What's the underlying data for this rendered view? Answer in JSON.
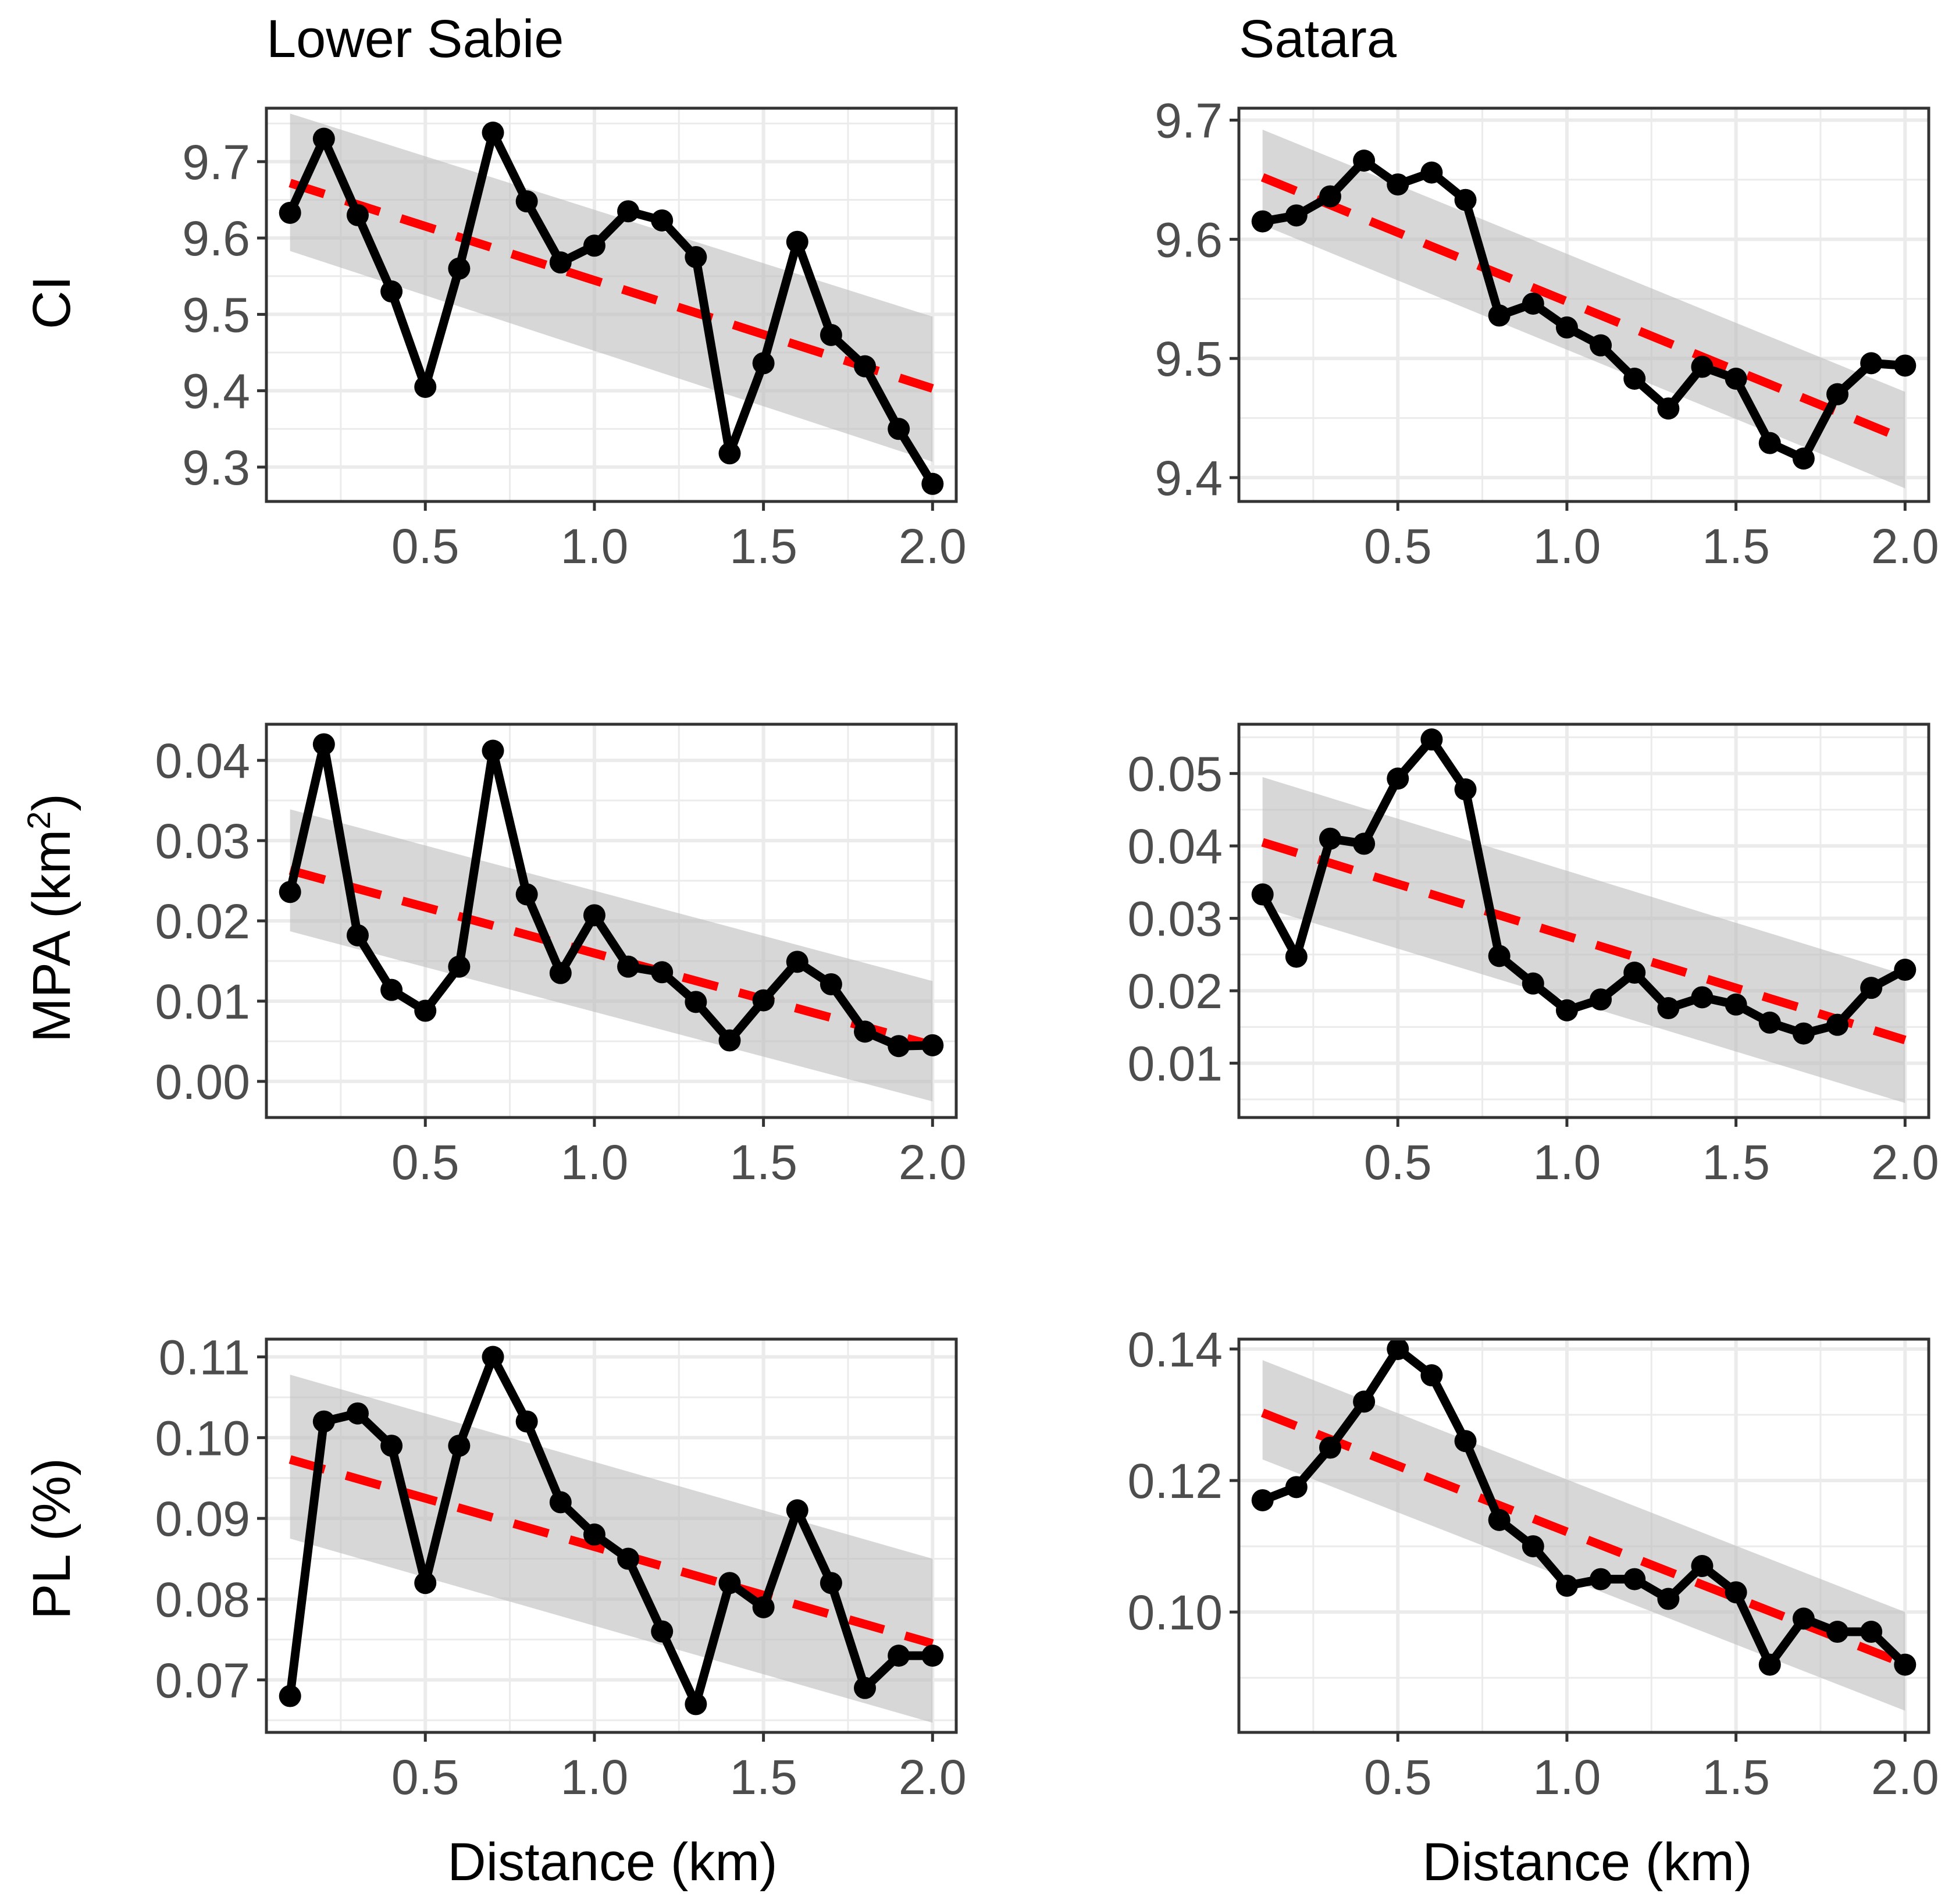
{
  "figure": {
    "columns": [
      "Lower Sabie",
      "Satara"
    ],
    "rows": [
      {
        "id": "CI",
        "label": "CI"
      },
      {
        "id": "MPA",
        "label": "MPA (km",
        "label_sup": "2",
        "label_end": ")"
      },
      {
        "id": "PL",
        "label": "PL (%)"
      }
    ],
    "xlabel": "Distance (km)",
    "x_ticks": [
      "0.5",
      "1.0",
      "1.5",
      "2.0"
    ],
    "x_tick_values": [
      0.5,
      1.0,
      1.5,
      2.0
    ],
    "colors": {
      "line": "#000000",
      "trend": "#ff0000",
      "ribbon": "#bdbdbd",
      "grid": "#ebebeb",
      "border": "#333333"
    }
  },
  "chart_data": [
    {
      "type": "line",
      "column": "Lower Sabie",
      "row": "CI",
      "ylabel": "CI",
      "xlim": [
        0.03,
        2.07
      ],
      "ylim": [
        9.255,
        9.77
      ],
      "y_ticks": [
        9.3,
        9.4,
        9.5,
        9.6,
        9.7
      ],
      "y_tick_labels": [
        "9.3",
        "9.4",
        "9.5",
        "9.6",
        "9.7"
      ],
      "x": [
        0.1,
        0.2,
        0.3,
        0.4,
        0.5,
        0.6,
        0.7,
        0.8,
        0.9,
        1.0,
        1.1,
        1.2,
        1.3,
        1.4,
        1.5,
        1.6,
        1.7,
        1.8,
        1.9,
        2.0
      ],
      "values": [
        9.633,
        9.73,
        9.63,
        9.53,
        9.405,
        9.56,
        9.738,
        9.648,
        9.568,
        9.59,
        9.635,
        9.623,
        9.575,
        9.318,
        9.436,
        9.595,
        9.473,
        9.432,
        9.35,
        9.278
      ],
      "trend": {
        "x": [
          0.1,
          2.0
        ],
        "y": [
          9.672,
          9.403
        ]
      },
      "ci_band": {
        "x": [
          0.1,
          2.0
        ],
        "lower": [
          9.583,
          9.307
        ],
        "upper": [
          9.763,
          9.497
        ]
      }
    },
    {
      "type": "line",
      "column": "Satara",
      "row": "CI",
      "ylabel": "",
      "xlim": [
        0.03,
        2.07
      ],
      "ylim": [
        9.38,
        9.71
      ],
      "y_ticks": [
        9.4,
        9.5,
        9.6,
        9.7
      ],
      "y_tick_labels": [
        "9.4",
        "9.5",
        "9.6",
        "9.7"
      ],
      "x": [
        0.1,
        0.2,
        0.3,
        0.4,
        0.5,
        0.6,
        0.7,
        0.8,
        0.9,
        1.0,
        1.1,
        1.2,
        1.3,
        1.4,
        1.5,
        1.6,
        1.7,
        1.8,
        1.9,
        2.0
      ],
      "values": [
        9.615,
        9.62,
        9.636,
        9.666,
        9.646,
        9.656,
        9.633,
        9.536,
        9.546,
        9.526,
        9.511,
        9.483,
        9.458,
        9.493,
        9.483,
        9.429,
        9.416,
        9.47,
        9.496,
        9.494
      ],
      "trend": {
        "x": [
          0.1,
          2.0
        ],
        "y": [
          9.652,
          9.432
        ]
      },
      "ci_band": {
        "x": [
          0.1,
          2.0
        ],
        "lower": [
          9.612,
          9.391
        ],
        "upper": [
          9.692,
          9.472
        ]
      }
    },
    {
      "type": "line",
      "column": "Lower Sabie",
      "row": "MPA",
      "ylabel": "MPA (km²)",
      "xlim": [
        0.03,
        2.07
      ],
      "ylim": [
        -0.0045,
        0.0445
      ],
      "y_ticks": [
        0.0,
        0.01,
        0.02,
        0.03,
        0.04
      ],
      "y_tick_labels": [
        "0.00",
        "0.01",
        "0.02",
        "0.03",
        "0.04"
      ],
      "x": [
        0.1,
        0.2,
        0.3,
        0.4,
        0.5,
        0.6,
        0.7,
        0.8,
        0.9,
        1.0,
        1.1,
        1.2,
        1.3,
        1.4,
        1.5,
        1.6,
        1.7,
        1.8,
        1.9,
        2.0
      ],
      "values": [
        0.0236,
        0.042,
        0.0182,
        0.0114,
        0.0088,
        0.0143,
        0.0412,
        0.0233,
        0.0135,
        0.0207,
        0.0143,
        0.0136,
        0.0099,
        0.0051,
        0.0101,
        0.0149,
        0.0121,
        0.0062,
        0.0044,
        0.0045
      ],
      "trend": {
        "x": [
          0.1,
          2.0
        ],
        "y": [
          0.0263,
          0.0045
        ]
      },
      "ci_band": {
        "x": [
          0.1,
          2.0
        ],
        "lower": [
          0.0187,
          -0.0025
        ],
        "upper": [
          0.0339,
          0.0125
        ]
      }
    },
    {
      "type": "line",
      "column": "Satara",
      "row": "MPA",
      "ylabel": "",
      "xlim": [
        0.03,
        2.07
      ],
      "ylim": [
        0.0025,
        0.0568
      ],
      "y_ticks": [
        0.01,
        0.02,
        0.03,
        0.04,
        0.05
      ],
      "y_tick_labels": [
        "0.01",
        "0.02",
        "0.03",
        "0.04",
        "0.05"
      ],
      "x": [
        0.1,
        0.2,
        0.3,
        0.4,
        0.5,
        0.6,
        0.7,
        0.8,
        0.9,
        1.0,
        1.1,
        1.2,
        1.3,
        1.4,
        1.5,
        1.6,
        1.7,
        1.8,
        1.9,
        2.0
      ],
      "values": [
        0.0333,
        0.0247,
        0.041,
        0.0403,
        0.0493,
        0.0547,
        0.0478,
        0.0248,
        0.021,
        0.0173,
        0.0188,
        0.0225,
        0.0176,
        0.0191,
        0.0181,
        0.0156,
        0.0141,
        0.0153,
        0.0204,
        0.0229
      ],
      "trend": {
        "x": [
          0.1,
          2.0
        ],
        "y": [
          0.0405,
          0.0132
        ]
      },
      "ci_band": {
        "x": [
          0.1,
          2.0
        ],
        "lower": [
          0.0315,
          0.0045
        ],
        "upper": [
          0.0495,
          0.0222
        ]
      }
    },
    {
      "type": "line",
      "column": "Lower Sabie",
      "row": "PL",
      "ylabel": "PL (%)",
      "xlim": [
        0.03,
        2.07
      ],
      "ylim": [
        0.0635,
        0.1122
      ],
      "y_ticks": [
        0.07,
        0.08,
        0.09,
        0.1,
        0.11
      ],
      "y_tick_labels": [
        "0.07",
        "0.08",
        "0.09",
        "0.10",
        "0.11"
      ],
      "x": [
        0.1,
        0.2,
        0.3,
        0.4,
        0.5,
        0.6,
        0.7,
        0.8,
        0.9,
        1.0,
        1.1,
        1.2,
        1.3,
        1.4,
        1.5,
        1.6,
        1.7,
        1.8,
        1.9,
        2.0
      ],
      "values": [
        0.068,
        0.102,
        0.103,
        0.099,
        0.082,
        0.099,
        0.11,
        0.102,
        0.092,
        0.088,
        0.085,
        0.076,
        0.067,
        0.082,
        0.079,
        0.091,
        0.082,
        0.069,
        0.073,
        0.073
      ],
      "trend": {
        "x": [
          0.1,
          2.0
        ],
        "y": [
          0.0973,
          0.0745
        ]
      },
      "ci_band": {
        "x": [
          0.1,
          2.0
        ],
        "lower": [
          0.0875,
          0.0647
        ],
        "upper": [
          0.1078,
          0.085
        ]
      }
    },
    {
      "type": "line",
      "column": "Satara",
      "row": "PL",
      "ylabel": "",
      "xlim": [
        0.03,
        2.07
      ],
      "ylim": [
        0.0817,
        0.1415
      ],
      "y_ticks": [
        0.1,
        0.12,
        0.14
      ],
      "y_tick_labels": [
        "0.10",
        "0.12",
        "0.14"
      ],
      "x": [
        0.1,
        0.2,
        0.3,
        0.4,
        0.5,
        0.6,
        0.7,
        0.8,
        0.9,
        1.0,
        1.1,
        1.2,
        1.3,
        1.4,
        1.5,
        1.6,
        1.7,
        1.8,
        1.9,
        2.0
      ],
      "values": [
        0.117,
        0.119,
        0.125,
        0.132,
        0.14,
        0.136,
        0.126,
        0.114,
        0.11,
        0.104,
        0.105,
        0.105,
        0.102,
        0.107,
        0.103,
        0.092,
        0.099,
        0.097,
        0.097,
        0.092
      ],
      "trend": {
        "x": [
          0.1,
          2.0
        ],
        "y": [
          0.1303,
          0.0921
        ]
      },
      "ci_band": {
        "x": [
          0.1,
          2.0
        ],
        "lower": [
          0.1232,
          0.085
        ],
        "upper": [
          0.1383,
          0.1
        ]
      }
    }
  ]
}
